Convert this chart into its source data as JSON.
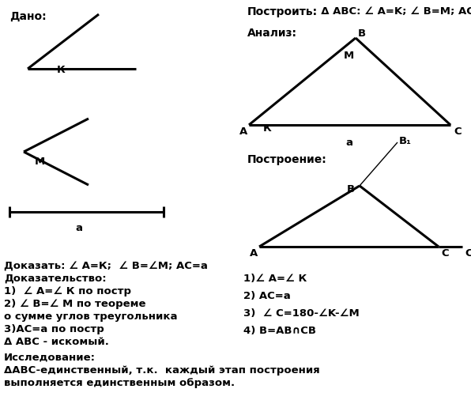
{
  "bg_color": "#ffffff",
  "lw": 2.2,
  "lw_thin": 1.0,
  "fontsize_bold": 9.5,
  "fontsize_header": 10,
  "dado_label": "Дано:",
  "postroit_label": "Построить:",
  "postroit_content": "  Δ ABC: ∠ A=K; ∠ B=M; AC=a",
  "analiz_label": "Анализ:",
  "postroenie_label": "Построение:",
  "text_dokazat": "Доказать: ∠ A=К;  ∠ B=∠М; AC=a",
  "text_dokazatelstvo": "Доказательство:",
  "text_1left": "1)  ∠ A=∠ К по постр",
  "text_2left": "2) ∠ B=∠ M по теореме",
  "text_2left_cont": "о сумме углов треугольника",
  "text_3left": "3)AC=a по постр",
  "text_4left": "Δ ABC - искомый.",
  "text_issledovanie": "Исследование:",
  "text_issledovanie_1": "ΔABC-единственный, т.к.  каждый этап построения",
  "text_issledovanie_2": "выполняется единственным образом.",
  "text_r1": "1)∠ A=∠ К",
  "text_r2": "2) AC=a",
  "text_r3": "3)  ∠ C=180-∠K-∠M",
  "text_r4": "4) B=AB∩CB"
}
